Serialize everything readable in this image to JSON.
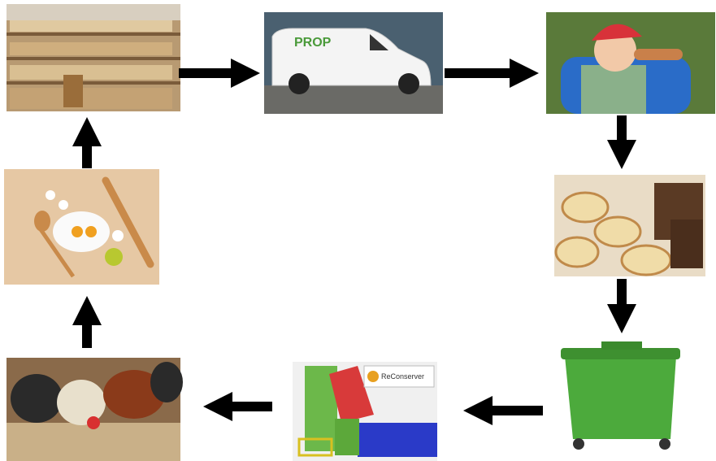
{
  "van": {
    "logo": "PROP"
  },
  "machine": {
    "logo": "ReConserver"
  }
}
